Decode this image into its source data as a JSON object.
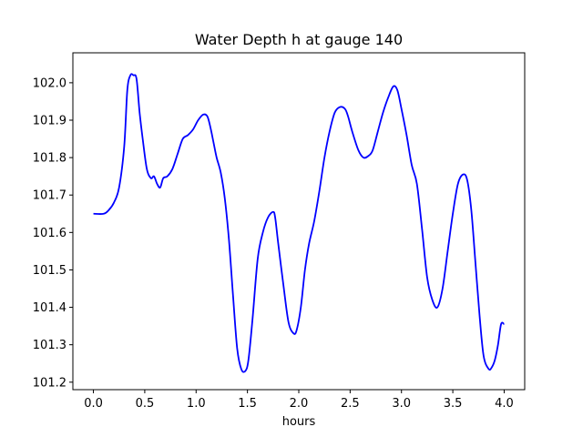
{
  "chart_data": {
    "type": "line",
    "title": "Water Depth h at gauge 140",
    "xlabel": "hours",
    "ylabel": "",
    "xlim": [
      -0.2,
      4.2
    ],
    "ylim": [
      101.18,
      102.08
    ],
    "grid": false,
    "legend": "none",
    "x_ticks": [
      0.0,
      0.5,
      1.0,
      1.5,
      2.0,
      2.5,
      3.0,
      3.5,
      4.0
    ],
    "x_tick_labels": [
      "0.0",
      "0.5",
      "1.0",
      "1.5",
      "2.0",
      "2.5",
      "3.0",
      "3.5",
      "4.0"
    ],
    "y_ticks": [
      101.2,
      101.3,
      101.4,
      101.5,
      101.6,
      101.7,
      101.8,
      101.9,
      102.0
    ],
    "y_tick_labels": [
      "101.2",
      "101.3",
      "101.4",
      "101.5",
      "101.6",
      "101.7",
      "101.8",
      "101.9",
      "102.0"
    ],
    "series": [
      {
        "color": "#0000ff",
        "x": [
          0.0,
          0.1,
          0.15,
          0.2,
          0.25,
          0.3,
          0.33,
          0.36,
          0.39,
          0.42,
          0.45,
          0.48,
          0.52,
          0.56,
          0.59,
          0.62,
          0.65,
          0.68,
          0.72,
          0.77,
          0.82,
          0.87,
          0.92,
          0.97,
          1.02,
          1.07,
          1.11,
          1.14,
          1.17,
          1.2,
          1.24,
          1.28,
          1.32,
          1.36,
          1.4,
          1.44,
          1.48,
          1.51,
          1.55,
          1.6,
          1.65,
          1.7,
          1.75,
          1.77,
          1.8,
          1.85,
          1.9,
          1.95,
          1.98,
          2.02,
          2.06,
          2.1,
          2.15,
          2.2,
          2.25,
          2.3,
          2.35,
          2.4,
          2.45,
          2.48,
          2.52,
          2.58,
          2.63,
          2.68,
          2.72,
          2.77,
          2.82,
          2.87,
          2.92,
          2.96,
          3.0,
          3.05,
          3.1,
          3.15,
          3.2,
          3.25,
          3.3,
          3.35,
          3.4,
          3.45,
          3.5,
          3.55,
          3.6,
          3.64,
          3.68,
          3.72,
          3.76,
          3.8,
          3.85,
          3.88,
          3.91,
          3.94,
          3.97,
          4.0
        ],
        "y": [
          101.65,
          101.65,
          101.66,
          101.68,
          101.72,
          101.83,
          101.98,
          102.02,
          102.02,
          102.01,
          101.92,
          101.85,
          101.77,
          101.745,
          101.75,
          101.73,
          101.72,
          101.745,
          101.75,
          101.77,
          101.81,
          101.85,
          101.86,
          101.875,
          101.9,
          101.915,
          101.91,
          101.88,
          101.84,
          101.8,
          101.76,
          101.69,
          101.58,
          101.43,
          101.29,
          101.235,
          101.23,
          101.26,
          101.37,
          101.53,
          101.6,
          101.64,
          101.655,
          101.64,
          101.57,
          101.46,
          101.36,
          101.33,
          101.34,
          101.4,
          101.5,
          101.57,
          101.63,
          101.71,
          101.8,
          101.87,
          101.92,
          101.935,
          101.93,
          101.91,
          101.87,
          101.82,
          101.8,
          101.805,
          101.82,
          101.87,
          101.92,
          101.96,
          101.99,
          101.98,
          101.93,
          101.86,
          101.78,
          101.73,
          101.61,
          101.48,
          101.42,
          101.4,
          101.45,
          101.55,
          101.65,
          101.73,
          101.755,
          101.74,
          101.66,
          101.52,
          101.38,
          101.27,
          101.235,
          101.24,
          101.26,
          101.3,
          101.355,
          101.355
        ]
      }
    ]
  }
}
